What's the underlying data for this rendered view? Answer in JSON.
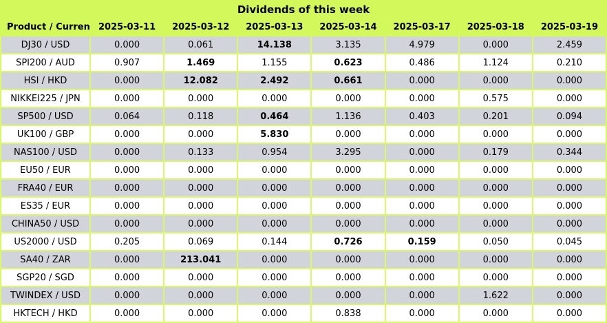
{
  "title": "Dividends of this week",
  "colors": {
    "header_bg": "#d3f85c",
    "grid_border": "#d9f968",
    "row_alt_bg": "#d2d4dc",
    "row_bg": "#ffffff",
    "text": "#000000"
  },
  "chart_data": {
    "type": "table",
    "title": "Dividends of this week",
    "columns": [
      "Product / Currency",
      "2025-03-11",
      "2025-03-12",
      "2025-03-13",
      "2025-03-14",
      "2025-03-17",
      "2025-03-18",
      "2025-03-19"
    ],
    "rows": [
      {
        "product": "DJ30 / USD",
        "values": [
          "0.000",
          "0.061",
          "14.138",
          "3.135",
          "4.979",
          "0.000",
          "2.459"
        ],
        "bold": [
          false,
          false,
          true,
          false,
          false,
          false,
          false
        ]
      },
      {
        "product": "SPI200 / AUD",
        "values": [
          "0.907",
          "1.469",
          "1.155",
          "0.623",
          "0.486",
          "1.124",
          "0.210"
        ],
        "bold": [
          false,
          true,
          false,
          true,
          false,
          false,
          false
        ]
      },
      {
        "product": "HSI / HKD",
        "values": [
          "0.000",
          "12.082",
          "2.492",
          "0.661",
          "0.000",
          "0.000",
          "0.000"
        ],
        "bold": [
          false,
          true,
          true,
          true,
          false,
          false,
          false
        ]
      },
      {
        "product": "NIKKEI225 / JPN",
        "values": [
          "0.000",
          "0.000",
          "0.000",
          "0.000",
          "0.000",
          "0.575",
          "0.000"
        ],
        "bold": [
          false,
          false,
          false,
          false,
          false,
          false,
          false
        ]
      },
      {
        "product": "SP500 / USD",
        "values": [
          "0.064",
          "0.118",
          "0.464",
          "1.136",
          "0.403",
          "0.201",
          "0.094"
        ],
        "bold": [
          false,
          false,
          true,
          false,
          false,
          false,
          false
        ]
      },
      {
        "product": "UK100 / GBP",
        "values": [
          "0.000",
          "0.000",
          "5.830",
          "0.000",
          "0.000",
          "0.000",
          "0.000"
        ],
        "bold": [
          false,
          false,
          true,
          false,
          false,
          false,
          false
        ]
      },
      {
        "product": "NAS100 / USD",
        "values": [
          "0.000",
          "0.133",
          "0.954",
          "3.295",
          "0.000",
          "0.179",
          "0.344"
        ],
        "bold": [
          false,
          false,
          false,
          false,
          false,
          false,
          false
        ]
      },
      {
        "product": "EU50 / EUR",
        "values": [
          "0.000",
          "0.000",
          "0.000",
          "0.000",
          "0.000",
          "0.000",
          "0.000"
        ],
        "bold": [
          false,
          false,
          false,
          false,
          false,
          false,
          false
        ]
      },
      {
        "product": "FRA40 / EUR",
        "values": [
          "0.000",
          "0.000",
          "0.000",
          "0.000",
          "0.000",
          "0.000",
          "0.000"
        ],
        "bold": [
          false,
          false,
          false,
          false,
          false,
          false,
          false
        ]
      },
      {
        "product": "ES35 / EUR",
        "values": [
          "0.000",
          "0.000",
          "0.000",
          "0.000",
          "0.000",
          "0.000",
          "0.000"
        ],
        "bold": [
          false,
          false,
          false,
          false,
          false,
          false,
          false
        ]
      },
      {
        "product": "CHINA50 / USD",
        "values": [
          "0.000",
          "0.000",
          "0.000",
          "0.000",
          "0.000",
          "0.000",
          "0.000"
        ],
        "bold": [
          false,
          false,
          false,
          false,
          false,
          false,
          false
        ]
      },
      {
        "product": "US2000 / USD",
        "values": [
          "0.205",
          "0.069",
          "0.144",
          "0.726",
          "0.159",
          "0.050",
          "0.045"
        ],
        "bold": [
          false,
          false,
          false,
          true,
          true,
          false,
          false
        ]
      },
      {
        "product": "SA40 / ZAR",
        "values": [
          "0.000",
          "213.041",
          "0.000",
          "0.000",
          "0.000",
          "0.000",
          "0.000"
        ],
        "bold": [
          false,
          true,
          false,
          false,
          false,
          false,
          false
        ]
      },
      {
        "product": "SGP20 / SGD",
        "values": [
          "0.000",
          "0.000",
          "0.000",
          "0.000",
          "0.000",
          "0.000",
          "0.000"
        ],
        "bold": [
          false,
          false,
          false,
          false,
          false,
          false,
          false
        ]
      },
      {
        "product": "TWINDEX / USD",
        "values": [
          "0.000",
          "0.000",
          "0.000",
          "0.000",
          "0.000",
          "1.622",
          "0.000"
        ],
        "bold": [
          false,
          false,
          false,
          false,
          false,
          false,
          false
        ]
      },
      {
        "product": "HKTECH / HKD",
        "values": [
          "0.000",
          "0.000",
          "0.000",
          "0.838",
          "0.000",
          "0.000",
          "0.000"
        ],
        "bold": [
          false,
          false,
          false,
          false,
          false,
          false,
          false
        ]
      }
    ]
  }
}
